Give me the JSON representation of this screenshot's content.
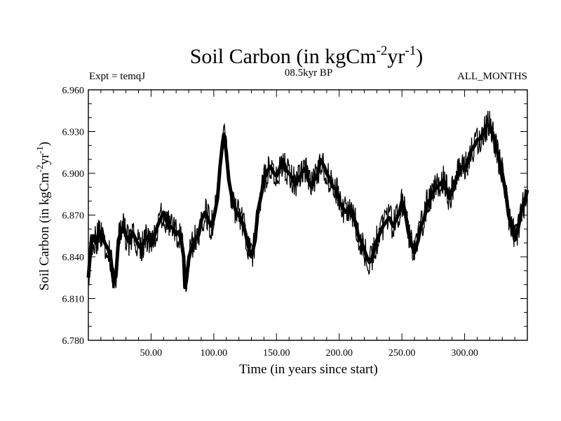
{
  "chart_data": {
    "type": "line",
    "title": "Soil Carbon (in kgCm",
    "title_sup1": "-2",
    "title_mid": "yr",
    "title_sup2": "-1",
    "title_end": ")",
    "subtitle_left": "Expt = temqJ",
    "subtitle_center": "08.5kyr BP",
    "subtitle_right": "ALL_MONTHS",
    "xlabel": "Time (in years since start)",
    "ylabel": "Soil Carbon (in kgCm",
    "ylabel_sup1": "-2",
    "ylabel_mid": "yr",
    "ylabel_sup2": "-1",
    "ylabel_end": ")",
    "xlim": [
      0,
      350
    ],
    "ylim": [
      6.78,
      6.96
    ],
    "xticks": [
      50,
      100,
      150,
      200,
      250,
      300
    ],
    "xtick_labels": [
      "50.00",
      "100.00",
      "150.00",
      "200.00",
      "250.00",
      "300.00"
    ],
    "yticks": [
      6.78,
      6.81,
      6.84,
      6.87,
      6.9,
      6.93,
      6.96
    ],
    "ytick_labels": [
      "6.780",
      "6.810",
      "6.840",
      "6.870",
      "6.900",
      "6.930",
      "6.960"
    ],
    "line_color": "#000000",
    "series": [
      {
        "name": "Soil Carbon",
        "x": [
          0,
          2,
          4,
          6,
          8,
          10,
          13,
          16,
          18,
          20,
          22,
          24,
          26,
          28,
          30,
          33,
          35,
          38,
          40,
          42,
          45,
          48,
          50,
          53,
          55,
          58,
          60,
          62,
          65,
          68,
          70,
          72,
          74,
          76,
          77,
          78,
          80,
          82,
          85,
          88,
          90,
          93,
          95,
          98,
          100,
          103,
          105,
          107,
          108,
          110,
          112,
          115,
          118,
          120,
          123,
          125,
          127,
          129,
          130,
          133,
          135,
          138,
          140,
          143,
          145,
          148,
          150,
          153,
          155,
          158,
          160,
          163,
          165,
          168,
          170,
          173,
          175,
          178,
          180,
          183,
          185,
          188,
          190,
          193,
          195,
          198,
          200,
          203,
          205,
          208,
          210,
          213,
          215,
          218,
          220,
          222,
          224,
          226,
          228,
          230,
          233,
          235,
          238,
          240,
          243,
          245,
          248,
          250,
          253,
          255,
          258,
          260,
          263,
          265,
          268,
          270,
          273,
          275,
          278,
          280,
          283,
          285,
          288,
          290,
          293,
          295,
          298,
          300,
          303,
          305,
          308,
          310,
          313,
          315,
          318,
          320,
          322,
          325,
          328,
          330,
          333,
          335,
          338,
          340,
          343,
          345,
          348,
          350
        ],
        "y": [
          6.825,
          6.848,
          6.855,
          6.85,
          6.856,
          6.858,
          6.85,
          6.845,
          6.838,
          6.822,
          6.826,
          6.852,
          6.858,
          6.862,
          6.855,
          6.85,
          6.858,
          6.852,
          6.848,
          6.846,
          6.852,
          6.855,
          6.848,
          6.856,
          6.862,
          6.868,
          6.872,
          6.866,
          6.862,
          6.86,
          6.856,
          6.858,
          6.852,
          6.84,
          6.818,
          6.822,
          6.838,
          6.846,
          6.852,
          6.856,
          6.866,
          6.872,
          6.868,
          6.862,
          6.868,
          6.882,
          6.905,
          6.922,
          6.928,
          6.915,
          6.895,
          6.88,
          6.872,
          6.87,
          6.864,
          6.858,
          6.85,
          6.842,
          6.84,
          6.852,
          6.872,
          6.885,
          6.895,
          6.902,
          6.905,
          6.9,
          6.898,
          6.905,
          6.91,
          6.902,
          6.9,
          6.896,
          6.892,
          6.896,
          6.9,
          6.904,
          6.896,
          6.89,
          6.895,
          6.9,
          6.91,
          6.905,
          6.9,
          6.895,
          6.89,
          6.888,
          6.88,
          6.875,
          6.872,
          6.876,
          6.87,
          6.865,
          6.856,
          6.85,
          6.845,
          6.84,
          6.836,
          6.838,
          6.846,
          6.852,
          6.858,
          6.862,
          6.866,
          6.868,
          6.862,
          6.866,
          6.872,
          6.88,
          6.87,
          6.858,
          6.848,
          6.843,
          6.852,
          6.862,
          6.868,
          6.878,
          6.882,
          6.887,
          6.89,
          6.892,
          6.895,
          6.89,
          6.882,
          6.888,
          6.895,
          6.9,
          6.905,
          6.902,
          6.91,
          6.916,
          6.92,
          6.924,
          6.925,
          6.93,
          6.935,
          6.934,
          6.93,
          6.92,
          6.908,
          6.9,
          6.885,
          6.87,
          6.86,
          6.852,
          6.862,
          6.872,
          6.88,
          6.888
        ]
      }
    ]
  }
}
